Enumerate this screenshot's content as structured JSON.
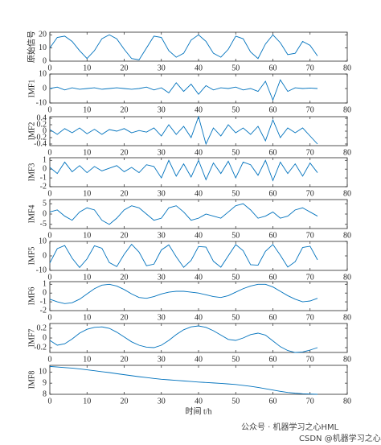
{
  "chart_data": [
    {
      "type": "line",
      "ylabel": "原始信号",
      "color": "#0072bd",
      "xlim": [
        0,
        80
      ],
      "xticks": [
        0,
        10,
        20,
        30,
        40,
        50,
        60,
        70,
        80
      ],
      "ylim": [
        0,
        22
      ],
      "yticks": [
        0,
        10,
        20
      ],
      "x": [
        0,
        2,
        4,
        6,
        8,
        10,
        12,
        14,
        16,
        18,
        20,
        22,
        24,
        26,
        28,
        30,
        32,
        34,
        36,
        38,
        40,
        42,
        44,
        46,
        48,
        50,
        52,
        54,
        56,
        58,
        60,
        62,
        64,
        66,
        68,
        70,
        72
      ],
      "values": [
        10,
        18,
        19,
        15,
        8,
        2,
        8,
        17,
        20,
        17,
        9,
        2,
        1,
        10,
        19,
        18,
        8,
        3,
        6,
        16,
        20,
        15,
        6,
        3,
        9,
        19,
        17,
        7,
        2,
        13,
        20,
        14,
        5,
        6,
        15,
        12,
        4
      ]
    },
    {
      "type": "line",
      "ylabel": "IMF1",
      "color": "#0072bd",
      "xlim": [
        0,
        80
      ],
      "xticks": [
        0,
        10,
        20,
        30,
        40,
        50,
        60,
        70,
        80
      ],
      "ylim": [
        -10,
        10
      ],
      "yticks": [
        -10,
        0,
        10
      ],
      "x": [
        0,
        2,
        4,
        6,
        8,
        10,
        12,
        14,
        16,
        18,
        20,
        22,
        24,
        26,
        28,
        30,
        32,
        34,
        36,
        38,
        40,
        42,
        44,
        46,
        48,
        50,
        52,
        54,
        56,
        58,
        60,
        62,
        64,
        66,
        68,
        70,
        72
      ],
      "values": [
        0,
        1,
        -1,
        0.5,
        -0.5,
        0,
        0.5,
        -0.5,
        0,
        0.5,
        0,
        -0.5,
        0,
        1,
        -1,
        0.5,
        -3,
        4,
        -2,
        3,
        -4,
        2,
        -1,
        0.5,
        0,
        1,
        -1,
        0,
        -2,
        5,
        -8,
        6,
        -2,
        0.5,
        0,
        0.3,
        0
      ]
    },
    {
      "type": "line",
      "ylabel": "IMF2",
      "color": "#0072bd",
      "xlim": [
        0,
        80
      ],
      "xticks": [
        0,
        10,
        20,
        30,
        40,
        50,
        60,
        70,
        80
      ],
      "ylim": [
        -0.45,
        0.45
      ],
      "yticks": [
        -0.4,
        -0.2,
        0,
        0.2,
        0.4
      ],
      "x": [
        0,
        2,
        4,
        6,
        8,
        10,
        12,
        14,
        16,
        18,
        20,
        22,
        24,
        26,
        28,
        30,
        32,
        34,
        36,
        38,
        40,
        42,
        44,
        46,
        48,
        50,
        52,
        54,
        56,
        58,
        60,
        62,
        64,
        66,
        68,
        70,
        72
      ],
      "values": [
        0.05,
        -0.1,
        0.08,
        -0.05,
        0.1,
        -0.08,
        0.06,
        -0.1,
        0.05,
        0,
        0.08,
        -0.05,
        0.02,
        -0.03,
        0.1,
        -0.15,
        0.2,
        -0.1,
        0.15,
        -0.2,
        0.45,
        -0.4,
        0.1,
        -0.15,
        0.2,
        -0.05,
        0.1,
        -0.1,
        0.15,
        -0.3,
        0.35,
        -0.2,
        0.1,
        -0.05,
        0.1,
        -0.15,
        -0.4
      ]
    },
    {
      "type": "line",
      "ylabel": "IMF3",
      "color": "#0072bd",
      "xlim": [
        0,
        80
      ],
      "xticks": [
        0,
        10,
        20,
        30,
        40,
        50,
        60,
        70,
        80
      ],
      "ylim": [
        -2,
        1.3
      ],
      "yticks": [
        -2,
        -1,
        0,
        1
      ],
      "x": [
        0,
        2,
        4,
        6,
        8,
        10,
        12,
        14,
        16,
        18,
        20,
        22,
        24,
        26,
        28,
        30,
        32,
        34,
        36,
        38,
        40,
        42,
        44,
        46,
        48,
        50,
        52,
        54,
        56,
        58,
        60,
        62,
        64,
        66,
        68,
        70,
        72
      ],
      "values": [
        0.2,
        -0.5,
        0.8,
        -0.3,
        0.4,
        -0.4,
        0.3,
        -0.2,
        0.1,
        0.4,
        -0.3,
        0.2,
        -0.4,
        0.5,
        0.3,
        -1,
        1,
        -0.8,
        0.6,
        -0.9,
        1,
        -1.2,
        0.7,
        -0.5,
        0.9,
        -1,
        0.8,
        0.5,
        -0.7,
        1,
        -1.3,
        0.8,
        -0.5,
        0.6,
        -0.8,
        0.7,
        -0.4
      ]
    },
    {
      "type": "line",
      "ylabel": "IMF4",
      "color": "#0072bd",
      "xlim": [
        0,
        80
      ],
      "xticks": [
        0,
        10,
        20,
        30,
        40,
        50,
        60,
        70,
        80
      ],
      "ylim": [
        -7,
        7
      ],
      "yticks": [
        -5,
        0,
        5
      ],
      "x": [
        0,
        2,
        4,
        6,
        8,
        10,
        12,
        14,
        16,
        18,
        20,
        22,
        24,
        26,
        28,
        30,
        32,
        34,
        36,
        38,
        40,
        42,
        44,
        46,
        48,
        50,
        52,
        54,
        56,
        58,
        60,
        62,
        64,
        66,
        68,
        70,
        72
      ],
      "values": [
        1,
        2,
        -1,
        -3,
        1,
        3,
        2,
        -3,
        -5,
        -2,
        2,
        4,
        3,
        0,
        -3,
        -2,
        3,
        4,
        1,
        -3,
        -2,
        0,
        -1,
        -2,
        1,
        4,
        5,
        2,
        -2,
        -1,
        1,
        -2,
        -1,
        2,
        3,
        1,
        -1
      ]
    },
    {
      "type": "line",
      "ylabel": "IMF5",
      "color": "#0072bd",
      "xlim": [
        0,
        80
      ],
      "xticks": [
        0,
        10,
        20,
        30,
        40,
        50,
        60,
        70,
        80
      ],
      "ylim": [
        -10,
        10
      ],
      "yticks": [
        -10,
        0,
        10
      ],
      "x": [
        0,
        2,
        4,
        6,
        8,
        10,
        12,
        14,
        16,
        18,
        20,
        22,
        24,
        26,
        28,
        30,
        32,
        34,
        36,
        38,
        40,
        42,
        44,
        46,
        48,
        50,
        52,
        54,
        56,
        58,
        60,
        62,
        64,
        66,
        68,
        70,
        72
      ],
      "values": [
        -4.9,
        5.0,
        7.2,
        -1.6,
        -8.0,
        -2.1,
        7.0,
        5.3,
        -4.6,
        -7.4,
        1.1,
        8.0,
        2.6,
        -6.8,
        -5.7,
        4.1,
        7.6,
        -0.6,
        -7.9,
        -3.1,
        6.5,
        6.1,
        -3.7,
        -7.8,
        0.1,
        7.8,
        3.6,
        -6.1,
        -6.4,
        3.2,
        7.9,
        0.5,
        -7.7,
        -4.0,
        5.8,
        6.7,
        -2.7
      ]
    },
    {
      "type": "line",
      "ylabel": "IMF6",
      "color": "#0072bd",
      "xlim": [
        0,
        80
      ],
      "xticks": [
        0,
        10,
        20,
        30,
        40,
        50,
        60,
        70,
        80
      ],
      "ylim": [
        -2,
        1.3
      ],
      "yticks": [
        -2,
        -1,
        0,
        1
      ],
      "x": [
        0,
        2,
        4,
        6,
        8,
        10,
        12,
        14,
        16,
        18,
        20,
        22,
        24,
        26,
        28,
        30,
        32,
        34,
        36,
        38,
        40,
        42,
        44,
        46,
        48,
        50,
        52,
        54,
        56,
        58,
        60,
        62,
        64,
        66,
        68,
        70,
        72
      ],
      "values": [
        -0.7,
        -1.0,
        -1.2,
        -1.1,
        -0.7,
        -0.1,
        0.5,
        0.9,
        1.0,
        0.8,
        0.4,
        -0.1,
        -0.5,
        -0.6,
        -0.4,
        -0.1,
        0.1,
        0.2,
        0.2,
        0.1,
        0.0,
        -0.2,
        -0.4,
        -0.5,
        -0.3,
        0.1,
        0.5,
        0.8,
        1.0,
        1.0,
        0.7,
        0.2,
        -0.3,
        -0.7,
        -1.0,
        -0.9,
        -0.6
      ]
    },
    {
      "type": "line",
      "ylabel": "IMF7",
      "color": "#0072bd",
      "xlim": [
        0,
        80
      ],
      "xticks": [
        0,
        10,
        20,
        30,
        40,
        50,
        60,
        70,
        80
      ],
      "ylim": [
        -0.3,
        0.3
      ],
      "yticks": [
        -0.2,
        0,
        0.2
      ],
      "x": [
        0,
        2,
        4,
        6,
        8,
        10,
        12,
        14,
        16,
        18,
        20,
        22,
        24,
        26,
        28,
        30,
        32,
        34,
        36,
        38,
        40,
        42,
        44,
        46,
        48,
        50,
        52,
        54,
        56,
        58,
        60,
        62,
        64,
        66,
        68,
        70,
        72
      ],
      "values": [
        -0.05,
        -0.15,
        -0.12,
        -0.02,
        0.1,
        0.18,
        0.22,
        0.23,
        0.2,
        0.12,
        0.02,
        -0.08,
        -0.15,
        -0.19,
        -0.2,
        -0.15,
        -0.05,
        0.07,
        0.17,
        0.23,
        0.25,
        0.22,
        0.15,
        0.06,
        -0.03,
        -0.05,
        0.0,
        0.07,
        0.1,
        0.06,
        -0.06,
        -0.18,
        -0.26,
        -0.3,
        -0.29,
        -0.25,
        -0.2
      ]
    },
    {
      "type": "line",
      "ylabel": "IMF8",
      "xlabel": "时间 t/h",
      "color": "#0072bd",
      "xlim": [
        0,
        80
      ],
      "xticks": [
        0,
        10,
        20,
        30,
        40,
        50,
        60,
        70,
        80
      ],
      "ylim": [
        8,
        10.6
      ],
      "yticks": [
        8,
        9,
        10
      ],
      "x": [
        0,
        2,
        4,
        6,
        8,
        10,
        12,
        14,
        16,
        18,
        20,
        22,
        24,
        26,
        28,
        30,
        32,
        34,
        36,
        38,
        40,
        42,
        44,
        46,
        48,
        50,
        52,
        54,
        56,
        58,
        60,
        62,
        64,
        66,
        68,
        70,
        72
      ],
      "values": [
        10.5,
        10.45,
        10.4,
        10.35,
        10.28,
        10.2,
        10.12,
        10.03,
        9.95,
        9.85,
        9.76,
        9.67,
        9.58,
        9.5,
        9.42,
        9.35,
        9.3,
        9.25,
        9.2,
        9.15,
        9.1,
        9.06,
        9.02,
        8.98,
        8.93,
        8.88,
        8.8,
        8.72,
        8.62,
        8.5,
        8.38,
        8.27,
        8.17,
        8.1,
        8.05,
        8.02,
        8.0
      ]
    }
  ],
  "watermark": [
    "公众号 · 机器学习之心HML",
    "CSDN @机器学习之心"
  ]
}
